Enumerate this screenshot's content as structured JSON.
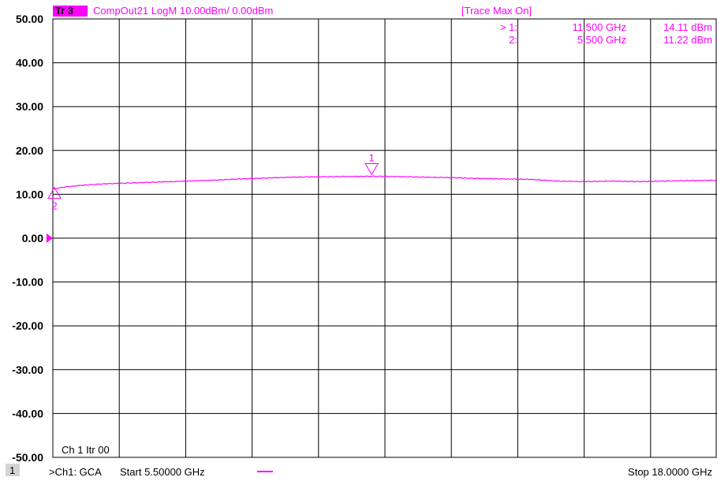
{
  "header": {
    "trace_badge": "Tr 3",
    "trace_title": "CompOut21 LogM 10.00dBm/  0.00dBm",
    "status": "[Trace Max On]"
  },
  "markers_table": [
    {
      "id": "> 1:",
      "freq": "11.500 GHz",
      "value": "14.11 dBm"
    },
    {
      "id": "2:",
      "freq": "5.500 GHz",
      "value": "11.22 dBm"
    }
  ],
  "channel_info": "Ch 1  Itr 00",
  "footer": {
    "channel_box": "1",
    "channel_desc": ">Ch1: GCA",
    "start": "Start  5.50000 GHz",
    "stop": "Stop  18.0000 GHz"
  },
  "colors": {
    "trace": "#ff00ff",
    "grid": "#000000",
    "background": "#ffffff",
    "reference_arrow": "#ff00ff"
  },
  "chart_data": {
    "type": "line",
    "yunit": "dBm",
    "ylim": [
      -50,
      50
    ],
    "xlim": [
      5.5,
      18.0
    ],
    "xunit": "GHz",
    "y_tick_labels": [
      "50.00",
      "40.00",
      "30.00",
      "20.00",
      "10.00",
      "0.00",
      "-10.00",
      "-20.00",
      "-30.00",
      "-40.00",
      "-50.00"
    ],
    "reference_level": 0.0,
    "grid": true,
    "series": [
      {
        "x": [
          5.5,
          5.75,
          6.0,
          6.5,
          7.0,
          7.5,
          8.0,
          8.5,
          9.0,
          9.5,
          10.0,
          10.5,
          11.0,
          11.5,
          12.0,
          12.5,
          13.0,
          13.5,
          14.0,
          14.5,
          15.0,
          15.5,
          16.0,
          16.5,
          17.0,
          17.5,
          18.0
        ],
        "y": [
          11.22,
          11.7,
          12.0,
          12.4,
          12.6,
          12.8,
          13.0,
          13.2,
          13.5,
          13.7,
          13.9,
          14.0,
          14.05,
          14.11,
          14.05,
          13.9,
          13.8,
          13.6,
          13.5,
          13.4,
          13.0,
          12.9,
          13.0,
          12.9,
          13.0,
          13.1,
          13.2
        ]
      }
    ],
    "markers": [
      {
        "label": "1",
        "x": 11.5,
        "y": 14.11,
        "shape": "down-triangle"
      },
      {
        "label": "2",
        "x": 5.5,
        "y": 11.22,
        "shape": "up-triangle"
      }
    ]
  }
}
